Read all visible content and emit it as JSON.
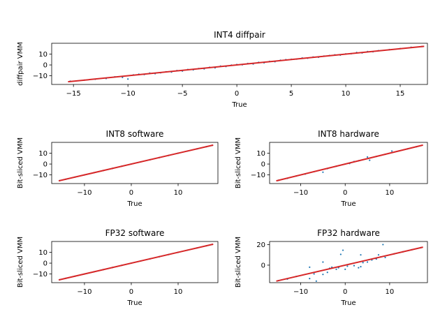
{
  "colors": {
    "points": "#1f77b4",
    "fit_line": "#d62728",
    "axes": "#000000",
    "background": "#ffffff"
  },
  "chart_data": [
    {
      "type": "scatter",
      "title": "INT4 diffpair",
      "xlabel": "True",
      "ylabel": "diffpair VMM",
      "xlim": [
        -17,
        17.5
      ],
      "ylim": [
        -18,
        20
      ],
      "xticks": [
        -15,
        -10,
        -5,
        0,
        5,
        10,
        15
      ],
      "yticks": [
        -10,
        0,
        10
      ],
      "line": {
        "x": [
          -15.5,
          17.2
        ],
        "y": [
          -15.5,
          17.2
        ]
      },
      "points": [
        [
          -15.3,
          -15.0
        ],
        [
          -14.0,
          -14.0
        ],
        [
          -13.0,
          -13.2
        ],
        [
          -12.0,
          -12.5
        ],
        [
          -11.2,
          -11.0
        ],
        [
          -10.5,
          -11.5
        ],
        [
          -10.0,
          -13.0
        ],
        [
          -9.5,
          -9.2
        ],
        [
          -9.0,
          -8.6
        ],
        [
          -8.5,
          -8.8
        ],
        [
          -8.0,
          -7.5
        ],
        [
          -7.5,
          -8.0
        ],
        [
          -7.0,
          -7.2
        ],
        [
          -6.5,
          -6.3
        ],
        [
          -6.0,
          -6.6
        ],
        [
          -5.5,
          -5.2
        ],
        [
          -5.0,
          -5.6
        ],
        [
          -4.5,
          -4.2
        ],
        [
          -4.0,
          -4.5
        ],
        [
          -3.5,
          -3.3
        ],
        [
          -3.0,
          -3.6
        ],
        [
          -2.5,
          -2.2
        ],
        [
          -2.0,
          -2.6
        ],
        [
          -1.5,
          -1.1
        ],
        [
          -1.0,
          -1.4
        ],
        [
          -0.5,
          -0.2
        ],
        [
          0.0,
          0.4
        ],
        [
          0.5,
          0.2
        ],
        [
          1.0,
          1.3
        ],
        [
          1.5,
          0.9
        ],
        [
          2.0,
          2.4
        ],
        [
          2.5,
          2.0
        ],
        [
          3.0,
          3.3
        ],
        [
          3.5,
          3.0
        ],
        [
          4.0,
          4.3
        ],
        [
          4.5,
          4.9
        ],
        [
          5.0,
          5.2
        ],
        [
          5.5,
          5.4
        ],
        [
          6.0,
          6.4
        ],
        [
          6.5,
          6.2
        ],
        [
          7.0,
          7.3
        ],
        [
          7.5,
          7.1
        ],
        [
          8.0,
          8.2
        ],
        [
          8.5,
          8.7
        ],
        [
          9.0,
          9.3
        ],
        [
          9.5,
          9.1
        ],
        [
          10.0,
          10.2
        ],
        [
          10.5,
          10.4
        ],
        [
          11.0,
          11.5
        ],
        [
          11.5,
          11.1
        ],
        [
          12.0,
          12.4
        ],
        [
          12.5,
          12.2
        ],
        [
          13.0,
          13.2
        ],
        [
          14.0,
          14.1
        ],
        [
          15.0,
          15.1
        ],
        [
          16.0,
          16.3
        ],
        [
          17.0,
          17.0
        ]
      ]
    },
    {
      "type": "scatter",
      "title": "INT8 software",
      "xlabel": "True",
      "ylabel": "Bit-sliced VMM",
      "xlim": [
        -17,
        18.5
      ],
      "ylim": [
        -18,
        20
      ],
      "xticks": [
        -10,
        0,
        10
      ],
      "yticks": [
        -10,
        0,
        10
      ],
      "line": {
        "x": [
          -15.5,
          17.5
        ],
        "y": [
          -15.5,
          17.5
        ]
      },
      "points": [
        [
          -15.3,
          -15.3
        ],
        [
          -14.0,
          -14.0
        ],
        [
          -12.0,
          -12.0
        ],
        [
          -10.0,
          -10.0
        ],
        [
          -8.0,
          -8.0
        ],
        [
          -6.0,
          -6.0
        ],
        [
          -4.0,
          -4.0
        ],
        [
          -2.0,
          -2.0
        ],
        [
          0.0,
          0.0
        ],
        [
          2.0,
          2.0
        ],
        [
          4.0,
          4.0
        ],
        [
          6.0,
          6.0
        ],
        [
          8.0,
          8.0
        ],
        [
          10.0,
          10.0
        ],
        [
          12.0,
          12.0
        ],
        [
          14.0,
          14.0
        ],
        [
          16.0,
          16.0
        ],
        [
          17.3,
          17.3
        ]
      ]
    },
    {
      "type": "scatter",
      "title": "INT8 hardware",
      "xlabel": "True",
      "ylabel": "Bit-sliced VMM",
      "xlim": [
        -17,
        18.5
      ],
      "ylim": [
        -18,
        20
      ],
      "xticks": [
        -10,
        0,
        10
      ],
      "yticks": [
        -10,
        0,
        10
      ],
      "line": {
        "x": [
          -15.5,
          17.5
        ],
        "y": [
          -15.5,
          17.5
        ]
      },
      "points": [
        [
          -15.0,
          -15.0
        ],
        [
          -13.0,
          -13.2
        ],
        [
          -11.0,
          -11.0
        ],
        [
          -9.0,
          -9.2
        ],
        [
          -7.0,
          -7.0
        ],
        [
          -5.0,
          -7.5
        ],
        [
          -4.0,
          -4.2
        ],
        [
          -2.0,
          -2.0
        ],
        [
          0.0,
          0.0
        ],
        [
          1.0,
          0.5
        ],
        [
          2.0,
          2.3
        ],
        [
          3.0,
          3.0
        ],
        [
          5.0,
          6.5
        ],
        [
          5.5,
          3.5
        ],
        [
          7.0,
          7.0
        ],
        [
          9.0,
          9.0
        ],
        [
          10.5,
          12.0
        ],
        [
          12.0,
          12.0
        ],
        [
          14.0,
          14.0
        ],
        [
          16.0,
          16.0
        ]
      ]
    },
    {
      "type": "scatter",
      "title": "FP32 software",
      "xlabel": "True",
      "ylabel": "Bit-sliced VMM",
      "xlim": [
        -17,
        18.5
      ],
      "ylim": [
        -18,
        20
      ],
      "xticks": [
        -10,
        0,
        10
      ],
      "yticks": [
        -10,
        0,
        10
      ],
      "line": {
        "x": [
          -15.5,
          17.5
        ],
        "y": [
          -15.5,
          17.5
        ]
      },
      "points": [
        [
          -15.3,
          -15.3
        ],
        [
          -14.0,
          -14.0
        ],
        [
          -12.0,
          -12.0
        ],
        [
          -10.0,
          -10.0
        ],
        [
          -8.0,
          -8.0
        ],
        [
          -6.0,
          -6.0
        ],
        [
          -4.0,
          -4.0
        ],
        [
          -2.0,
          -2.0
        ],
        [
          0.0,
          0.0
        ],
        [
          2.0,
          2.0
        ],
        [
          4.0,
          4.0
        ],
        [
          6.0,
          6.0
        ],
        [
          8.0,
          8.0
        ],
        [
          10.0,
          10.0
        ],
        [
          12.0,
          12.0
        ],
        [
          14.0,
          14.0
        ],
        [
          16.0,
          16.0
        ],
        [
          17.3,
          17.3
        ]
      ]
    },
    {
      "type": "scatter",
      "title": "FP32 hardware",
      "xlabel": "True",
      "ylabel": "Bit-sliced VMM",
      "xlim": [
        -17,
        18.5
      ],
      "ylim": [
        -17,
        23
      ],
      "xticks": [
        -10,
        0,
        10
      ],
      "yticks": [
        0,
        20
      ],
      "line": {
        "x": [
          -15.5,
          17.5
        ],
        "y": [
          -15.5,
          17.5
        ]
      },
      "points": [
        [
          -15.0,
          -15.0
        ],
        [
          -13.0,
          -13.5
        ],
        [
          -11.0,
          -11.0
        ],
        [
          -8.0,
          -2.0
        ],
        [
          -8.0,
          -13.0
        ],
        [
          -7.0,
          -8.5
        ],
        [
          -6.5,
          -15.5
        ],
        [
          -5.0,
          -9.0
        ],
        [
          -5.0,
          3.0
        ],
        [
          -4.0,
          -7.0
        ],
        [
          -3.5,
          -3.0
        ],
        [
          -3.0,
          -2.0
        ],
        [
          -2.0,
          -4.0
        ],
        [
          -1.5,
          -2.5
        ],
        [
          -1.0,
          10.5
        ],
        [
          -0.5,
          14.5
        ],
        [
          0.0,
          -4.0
        ],
        [
          0.5,
          -1.0
        ],
        [
          1.0,
          1.0
        ],
        [
          2.0,
          -0.5
        ],
        [
          3.0,
          -2.5
        ],
        [
          3.5,
          -1.5
        ],
        [
          3.5,
          10.0
        ],
        [
          4.0,
          2.5
        ],
        [
          5.0,
          3.0
        ],
        [
          6.0,
          5.0
        ],
        [
          7.0,
          6.0
        ],
        [
          7.5,
          10.0
        ],
        [
          8.0,
          8.0
        ],
        [
          8.5,
          20.0
        ],
        [
          9.0,
          7.5
        ],
        [
          11.0,
          11.0
        ],
        [
          13.0,
          13.0
        ],
        [
          15.0,
          15.0
        ],
        [
          17.0,
          17.0
        ]
      ]
    }
  ]
}
